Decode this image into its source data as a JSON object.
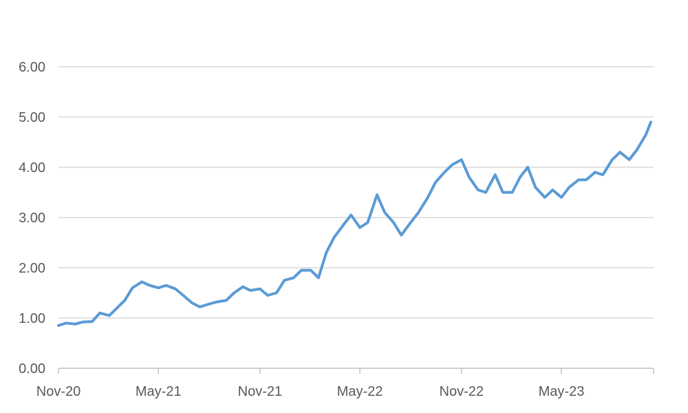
{
  "chart_data": {
    "type": "line",
    "title": "",
    "xlabel": "",
    "ylabel": "",
    "ylim": [
      0,
      6
    ],
    "y_ticks": [
      "0.00",
      "1.00",
      "2.00",
      "3.00",
      "4.00",
      "5.00",
      "6.00"
    ],
    "x_ticks": [
      "Nov-20",
      "May-21",
      "Nov-21",
      "May-22",
      "Nov-22",
      "May-23"
    ],
    "grid": true,
    "legend": "none",
    "colors": {
      "series": "#5b9bd5",
      "grid": "#d9d9d9",
      "axis": "#bfbfbf",
      "text": "#595959"
    },
    "series": [
      {
        "x": [
          "2020-11-01",
          "2020-11-15",
          "2020-12-01",
          "2020-12-15",
          "2021-01-01",
          "2021-01-15",
          "2021-02-01",
          "2021-02-15",
          "2021-03-01",
          "2021-03-15",
          "2021-04-01",
          "2021-04-15",
          "2021-05-01",
          "2021-05-15",
          "2021-06-01",
          "2021-06-15",
          "2021-07-01",
          "2021-07-15",
          "2021-08-01",
          "2021-08-15",
          "2021-09-01",
          "2021-09-15",
          "2021-10-01",
          "2021-10-15",
          "2021-11-01",
          "2021-11-15",
          "2021-12-01",
          "2021-12-15",
          "2022-01-01",
          "2022-01-15",
          "2022-02-01",
          "2022-02-15",
          "2022-03-01",
          "2022-03-15",
          "2022-04-01",
          "2022-04-15",
          "2022-05-01",
          "2022-05-15",
          "2022-06-01",
          "2022-06-15",
          "2022-07-01",
          "2022-07-15",
          "2022-08-01",
          "2022-08-15",
          "2022-09-01",
          "2022-09-15",
          "2022-10-01",
          "2022-10-15",
          "2022-11-01",
          "2022-11-15",
          "2022-12-01",
          "2022-12-15",
          "2023-01-01",
          "2023-01-15",
          "2023-02-01",
          "2023-02-15",
          "2023-03-01",
          "2023-03-15",
          "2023-04-01",
          "2023-04-15",
          "2023-05-01",
          "2023-05-15",
          "2023-06-01",
          "2023-06-15",
          "2023-07-01",
          "2023-07-15",
          "2023-08-01",
          "2023-08-15",
          "2023-09-01",
          "2023-09-15",
          "2023-10-01",
          "2023-10-10"
        ],
        "values": [
          0.85,
          0.9,
          0.88,
          0.92,
          0.93,
          1.1,
          1.05,
          1.2,
          1.35,
          1.6,
          1.72,
          1.65,
          1.6,
          1.65,
          1.58,
          1.45,
          1.3,
          1.22,
          1.28,
          1.32,
          1.35,
          1.5,
          1.62,
          1.55,
          1.58,
          1.45,
          1.5,
          1.75,
          1.8,
          1.95,
          1.95,
          1.8,
          2.3,
          2.6,
          2.85,
          3.05,
          2.8,
          2.9,
          3.45,
          3.1,
          2.9,
          2.65,
          2.9,
          3.1,
          3.4,
          3.7,
          3.9,
          4.05,
          4.15,
          3.8,
          3.55,
          3.5,
          3.85,
          3.5,
          3.5,
          3.8,
          4.0,
          3.6,
          3.4,
          3.55,
          3.4,
          3.6,
          3.75,
          3.75,
          3.9,
          3.85,
          4.15,
          4.3,
          4.15,
          4.35,
          4.65,
          4.9
        ]
      }
    ]
  }
}
